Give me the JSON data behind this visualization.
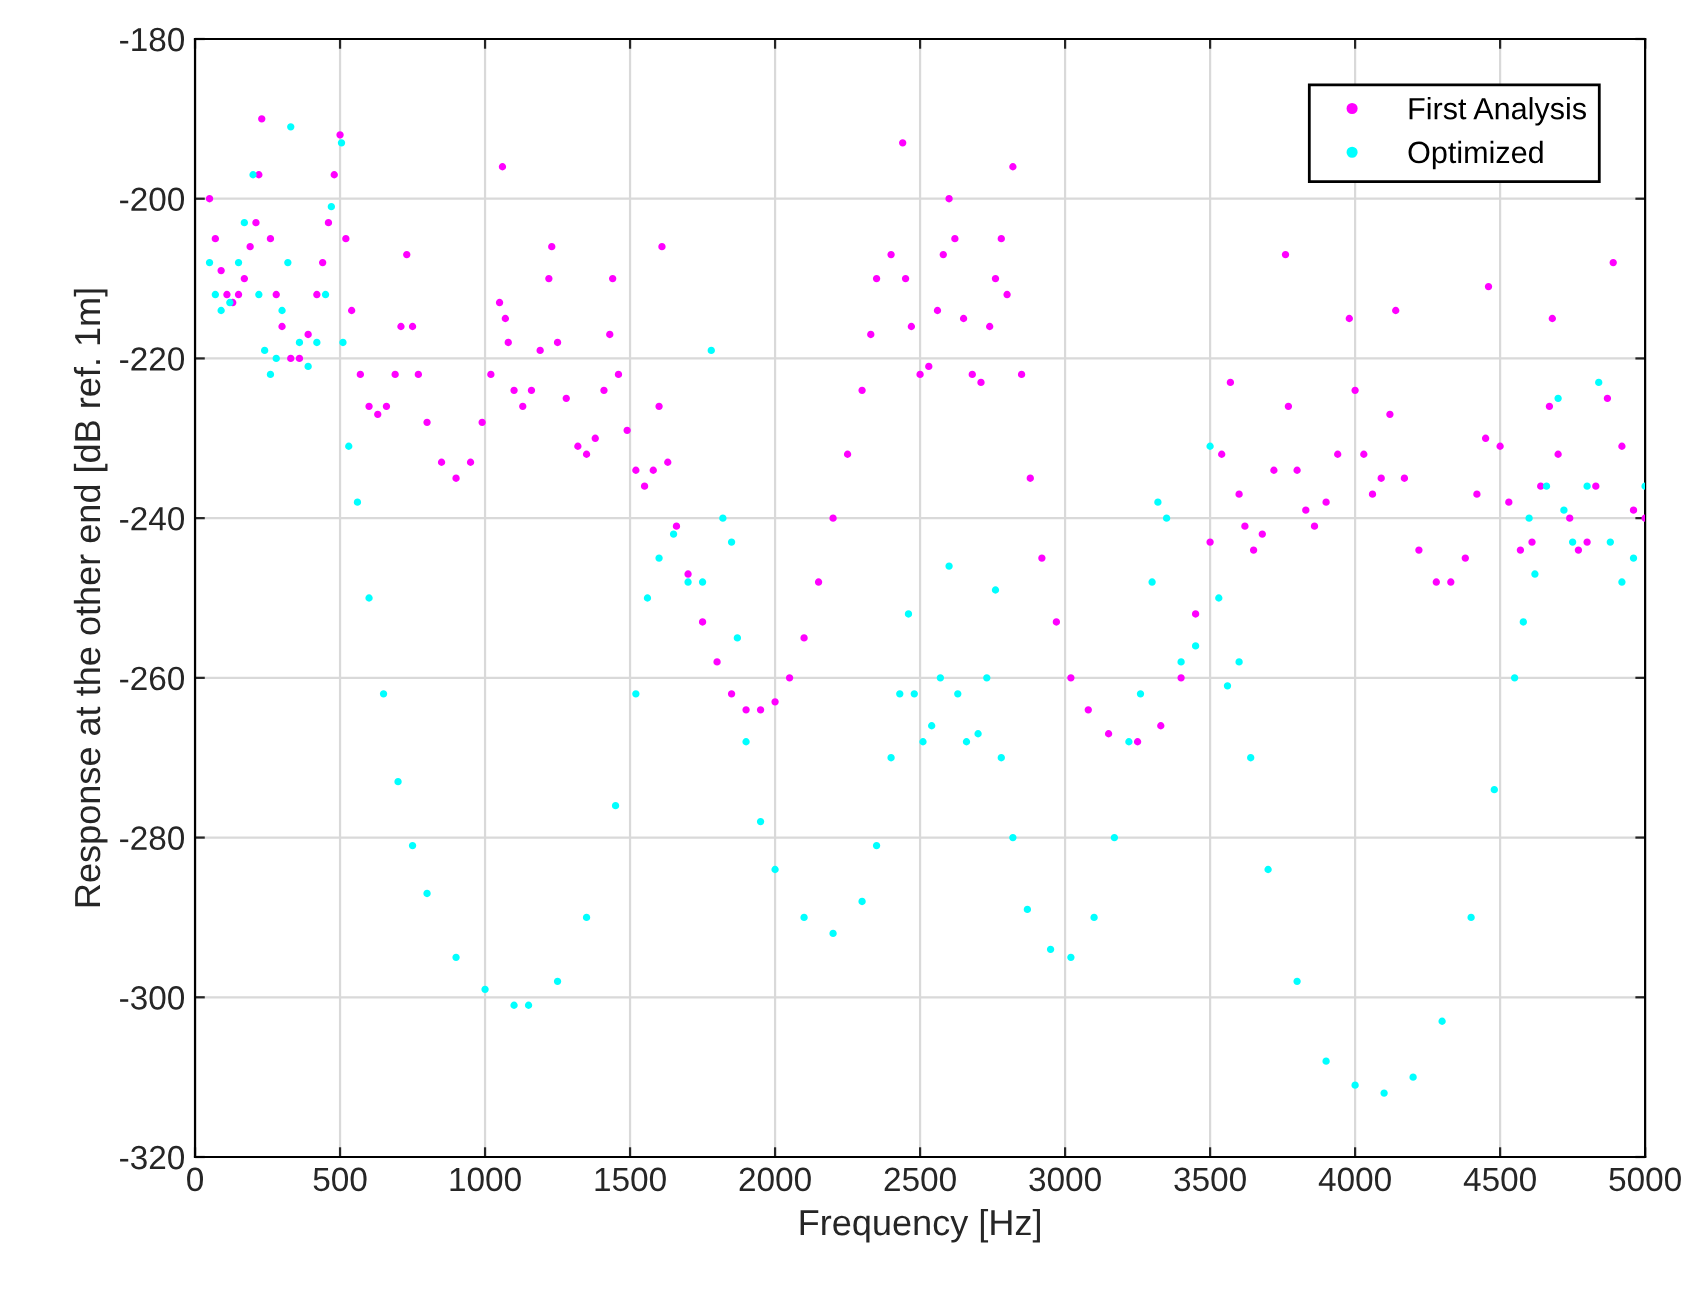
{
  "chart_data": {
    "type": "scatter",
    "xlabel": "Frequency [Hz]",
    "ylabel": "Response at the other end [dB ref. 1m]",
    "xlim": [
      0,
      5000
    ],
    "xticks": [
      0,
      500,
      1000,
      1500,
      2000,
      2500,
      3000,
      3500,
      4000,
      4500,
      5000
    ],
    "ylim": [
      -320,
      -180
    ],
    "yticks": [
      -320,
      -300,
      -280,
      -260,
      -240,
      -220,
      -200,
      -180
    ],
    "grid": true,
    "legend": "top right",
    "marker": "circle",
    "series": [
      {
        "name": "First Analysis",
        "color": "#ff00ff",
        "x": [
          50,
          70,
          90,
          110,
          130,
          150,
          170,
          190,
          210,
          220,
          230,
          260,
          280,
          300,
          330,
          360,
          390,
          420,
          440,
          460,
          480,
          500,
          520,
          540,
          570,
          600,
          630,
          660,
          690,
          710,
          730,
          750,
          770,
          800,
          850,
          900,
          950,
          990,
          1020,
          1050,
          1060,
          1070,
          1080,
          1100,
          1130,
          1160,
          1190,
          1220,
          1230,
          1250,
          1280,
          1320,
          1350,
          1380,
          1410,
          1430,
          1440,
          1460,
          1490,
          1520,
          1550,
          1580,
          1600,
          1610,
          1630,
          1660,
          1700,
          1750,
          1800,
          1850,
          1900,
          1950,
          2000,
          2050,
          2100,
          2150,
          2200,
          2250,
          2300,
          2330,
          2350,
          2400,
          2440,
          2450,
          2470,
          2500,
          2530,
          2560,
          2580,
          2600,
          2620,
          2650,
          2680,
          2710,
          2740,
          2760,
          2780,
          2800,
          2820,
          2850,
          2880,
          2920,
          2970,
          3020,
          3080,
          3150,
          3250,
          3330,
          3400,
          3450,
          3500,
          3540,
          3570,
          3600,
          3620,
          3650,
          3680,
          3720,
          3760,
          3770,
          3800,
          3830,
          3860,
          3900,
          3940,
          3980,
          4000,
          4030,
          4060,
          4090,
          4120,
          4140,
          4170,
          4220,
          4280,
          4330,
          4380,
          4420,
          4450,
          4460,
          4500,
          4530,
          4570,
          4610,
          4640,
          4670,
          4680,
          4700,
          4740,
          4770,
          4800,
          4830,
          4870,
          4890,
          4920,
          4960,
          5000
        ],
        "values": [
          -200,
          -205,
          -209,
          -212,
          -213,
          -212,
          -210,
          -206,
          -203,
          -197,
          -190,
          -205,
          -212,
          -216,
          -220,
          -220,
          -217,
          -212,
          -208,
          -203,
          -197,
          -192,
          -205,
          -214,
          -222,
          -226,
          -227,
          -226,
          -222,
          -216,
          -207,
          -216,
          -222,
          -228,
          -233,
          -235,
          -233,
          -228,
          -222,
          -213,
          -196,
          -215,
          -218,
          -224,
          -226,
          -224,
          -219,
          -210,
          -206,
          -218,
          -225,
          -231,
          -232,
          -230,
          -224,
          -217,
          -210,
          -222,
          -229,
          -234,
          -236,
          -234,
          -226,
          -206,
          -233,
          -241,
          -247,
          -253,
          -258,
          -262,
          -264,
          -264,
          -263,
          -260,
          -255,
          -248,
          -240,
          -232,
          -224,
          -217,
          -210,
          -207,
          -193,
          -210,
          -216,
          -222,
          -221,
          -214,
          -207,
          -200,
          -205,
          -215,
          -222,
          -223,
          -216,
          -210,
          -205,
          -212,
          -196,
          -222,
          -235,
          -245,
          -253,
          -260,
          -264,
          -267,
          -268,
          -266,
          -260,
          -252,
          -243,
          -232,
          -223,
          -237,
          -241,
          -244,
          -242,
          -234,
          -207,
          -226,
          -234,
          -239,
          -241,
          -238,
          -232,
          -215,
          -224,
          -232,
          -237,
          -235,
          -227,
          -214,
          -235,
          -244,
          -248,
          -248,
          -245,
          -237,
          -230,
          -211,
          -231,
          -238,
          -244,
          -243,
          -236,
          -226,
          -215,
          -232,
          -240,
          -244,
          -243,
          -236,
          -225,
          -208,
          -231,
          -239,
          -240
        ]
      },
      {
        "name": "Optimized",
        "color": "#00ffff",
        "x": [
          50,
          70,
          90,
          120,
          150,
          170,
          200,
          220,
          240,
          260,
          280,
          300,
          320,
          330,
          360,
          390,
          420,
          450,
          470,
          505,
          510,
          530,
          560,
          600,
          650,
          700,
          750,
          800,
          900,
          1000,
          1100,
          1150,
          1250,
          1350,
          1450,
          1520,
          1560,
          1600,
          1650,
          1700,
          1750,
          1780,
          1820,
          1850,
          1870,
          1900,
          1950,
          2000,
          2100,
          2200,
          2300,
          2350,
          2400,
          2430,
          2460,
          2480,
          2510,
          2540,
          2570,
          2600,
          2630,
          2660,
          2700,
          2730,
          2760,
          2780,
          2820,
          2870,
          2950,
          3020,
          3100,
          3170,
          3220,
          3260,
          3300,
          3320,
          3350,
          3400,
          3450,
          3500,
          3530,
          3560,
          3600,
          3640,
          3700,
          3800,
          3900,
          4000,
          4100,
          4200,
          4300,
          4400,
          4480,
          4550,
          4580,
          4600,
          4620,
          4660,
          4700,
          4720,
          4750,
          4800,
          4840,
          4880,
          4920,
          4960,
          5000
        ],
        "values": [
          -208,
          -212,
          -214,
          -213,
          -208,
          -203,
          -197,
          -212,
          -219,
          -222,
          -220,
          -214,
          -208,
          -191,
          -218,
          -221,
          -218,
          -212,
          -201,
          -193,
          -218,
          -231,
          -238,
          -250,
          -262,
          -273,
          -281,
          -287,
          -295,
          -299,
          -301,
          -301,
          -298,
          -290,
          -276,
          -262,
          -250,
          -245,
          -242,
          -248,
          -248,
          -219,
          -240,
          -243,
          -255,
          -268,
          -278,
          -284,
          -290,
          -292,
          -288,
          -281,
          -270,
          -262,
          -252,
          -262,
          -268,
          -266,
          -260,
          -246,
          -262,
          -268,
          -267,
          -260,
          -249,
          -270,
          -280,
          -289,
          -294,
          -295,
          -290,
          -280,
          -268,
          -262,
          -248,
          -238,
          -240,
          -258,
          -256,
          -231,
          -250,
          -261,
          -258,
          -270,
          -284,
          -298,
          -308,
          -311,
          -312,
          -310,
          -303,
          -290,
          -274,
          -260,
          -253,
          -240,
          -247,
          -236,
          -225,
          -239,
          -243,
          -236,
          -223,
          -243,
          -248,
          -245,
          -236
        ]
      }
    ]
  }
}
